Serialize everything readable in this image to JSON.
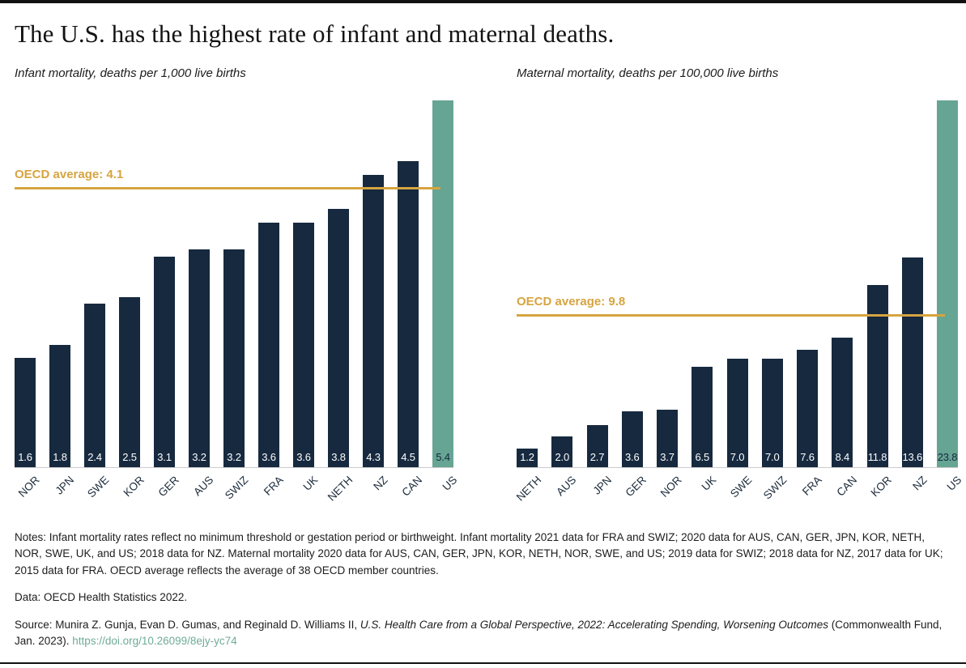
{
  "header": {
    "title": "The U.S. has the highest rate of infant and maternal deaths."
  },
  "colors": {
    "bar_navy": "#16293F",
    "highlight_teal": "#66A593",
    "reference_gold": "#D6A440",
    "axis_gray": "#CCCCCC",
    "link_teal": "#6FAB99",
    "rule_black": "#111111"
  },
  "chart_data": [
    {
      "type": "bar",
      "title": "Infant mortality, deaths per 1,000 live births",
      "categories": [
        "NOR",
        "JPN",
        "SWE",
        "KOR",
        "GER",
        "AUS",
        "SWIZ",
        "FRA",
        "UK",
        "NETH",
        "NZ",
        "CAN",
        "US"
      ],
      "values": [
        1.6,
        1.8,
        2.4,
        2.5,
        3.1,
        3.2,
        3.2,
        3.6,
        3.6,
        3.8,
        4.3,
        4.5,
        5.4
      ],
      "value_labels": [
        "1.6",
        "1.8",
        "2.4",
        "2.5",
        "3.1",
        "3.2",
        "3.2",
        "3.6",
        "3.6",
        "3.8",
        "4.3",
        "4.5",
        "5.4"
      ],
      "highlight_category": "US",
      "bar_color": "#16293F",
      "highlight_color": "#66A593",
      "value_label_color": "#FFFFFF",
      "highlight_value_label_color": "#16293F",
      "reference_line": {
        "label": "OECD average: 4.1",
        "value": 4.1,
        "color": "#D6A440"
      },
      "ylim": [
        0,
        5.4
      ],
      "grid": false,
      "legend": "none",
      "value_label_position": "inside-base",
      "x_tick_rotation": -45
    },
    {
      "type": "bar",
      "title": "Maternal mortality, deaths per 100,000 live births",
      "categories": [
        "NETH",
        "AUS",
        "JPN",
        "GER",
        "NOR",
        "UK",
        "SWE",
        "SWIZ",
        "FRA",
        "CAN",
        "KOR",
        "NZ",
        "US"
      ],
      "values": [
        1.2,
        2.0,
        2.7,
        3.6,
        3.7,
        6.5,
        7.0,
        7.0,
        7.6,
        8.4,
        11.8,
        13.6,
        23.8
      ],
      "value_labels": [
        "1.2",
        "2.0",
        "2.7",
        "3.6",
        "3.7",
        "6.5",
        "7.0",
        "7.0",
        "7.6",
        "8.4",
        "11.8",
        "13.6",
        "23.8"
      ],
      "highlight_category": "US",
      "bar_color": "#16293F",
      "highlight_color": "#66A593",
      "value_label_color": "#FFFFFF",
      "highlight_value_label_color": "#16293F",
      "reference_line": {
        "label": "OECD average: 9.8",
        "value": 9.8,
        "color": "#D6A440"
      },
      "ylim": [
        0,
        23.8
      ],
      "grid": false,
      "legend": "none",
      "value_label_position": "inside-base",
      "x_tick_rotation": -45
    }
  ],
  "footer": {
    "notes": "Notes: Infant mortality rates reflect no minimum threshold or gestation period or birthweight. Infant mortality 2021 data for FRA and SWIZ; 2020 data for AUS, CAN, GER, JPN, KOR, NETH, NOR, SWE, UK, and US; 2018 data for NZ. Maternal mortality 2020 data for AUS, CAN, GER, JPN, KOR, NETH, NOR, SWE, and US; 2019 data for SWIZ; 2018 data for NZ, 2017 data for UK; 2015 data for FRA. OECD average reflects the average of 38 OECD member countries.",
    "data_line": "Data: OECD Health Statistics 2022.",
    "source_prefix": "Source: Munira Z. Gunja, Evan D. Gumas, and Reginald D. Williams II, ",
    "source_italic": "U.S. Health Care from a Global Perspective, 2022: Accelerating Spending, Worsening Outcomes",
    "source_suffix": " (Commonwealth Fund, Jan. 2023). ",
    "link": "https://doi.org/10.26099/8ejy-yc74"
  }
}
